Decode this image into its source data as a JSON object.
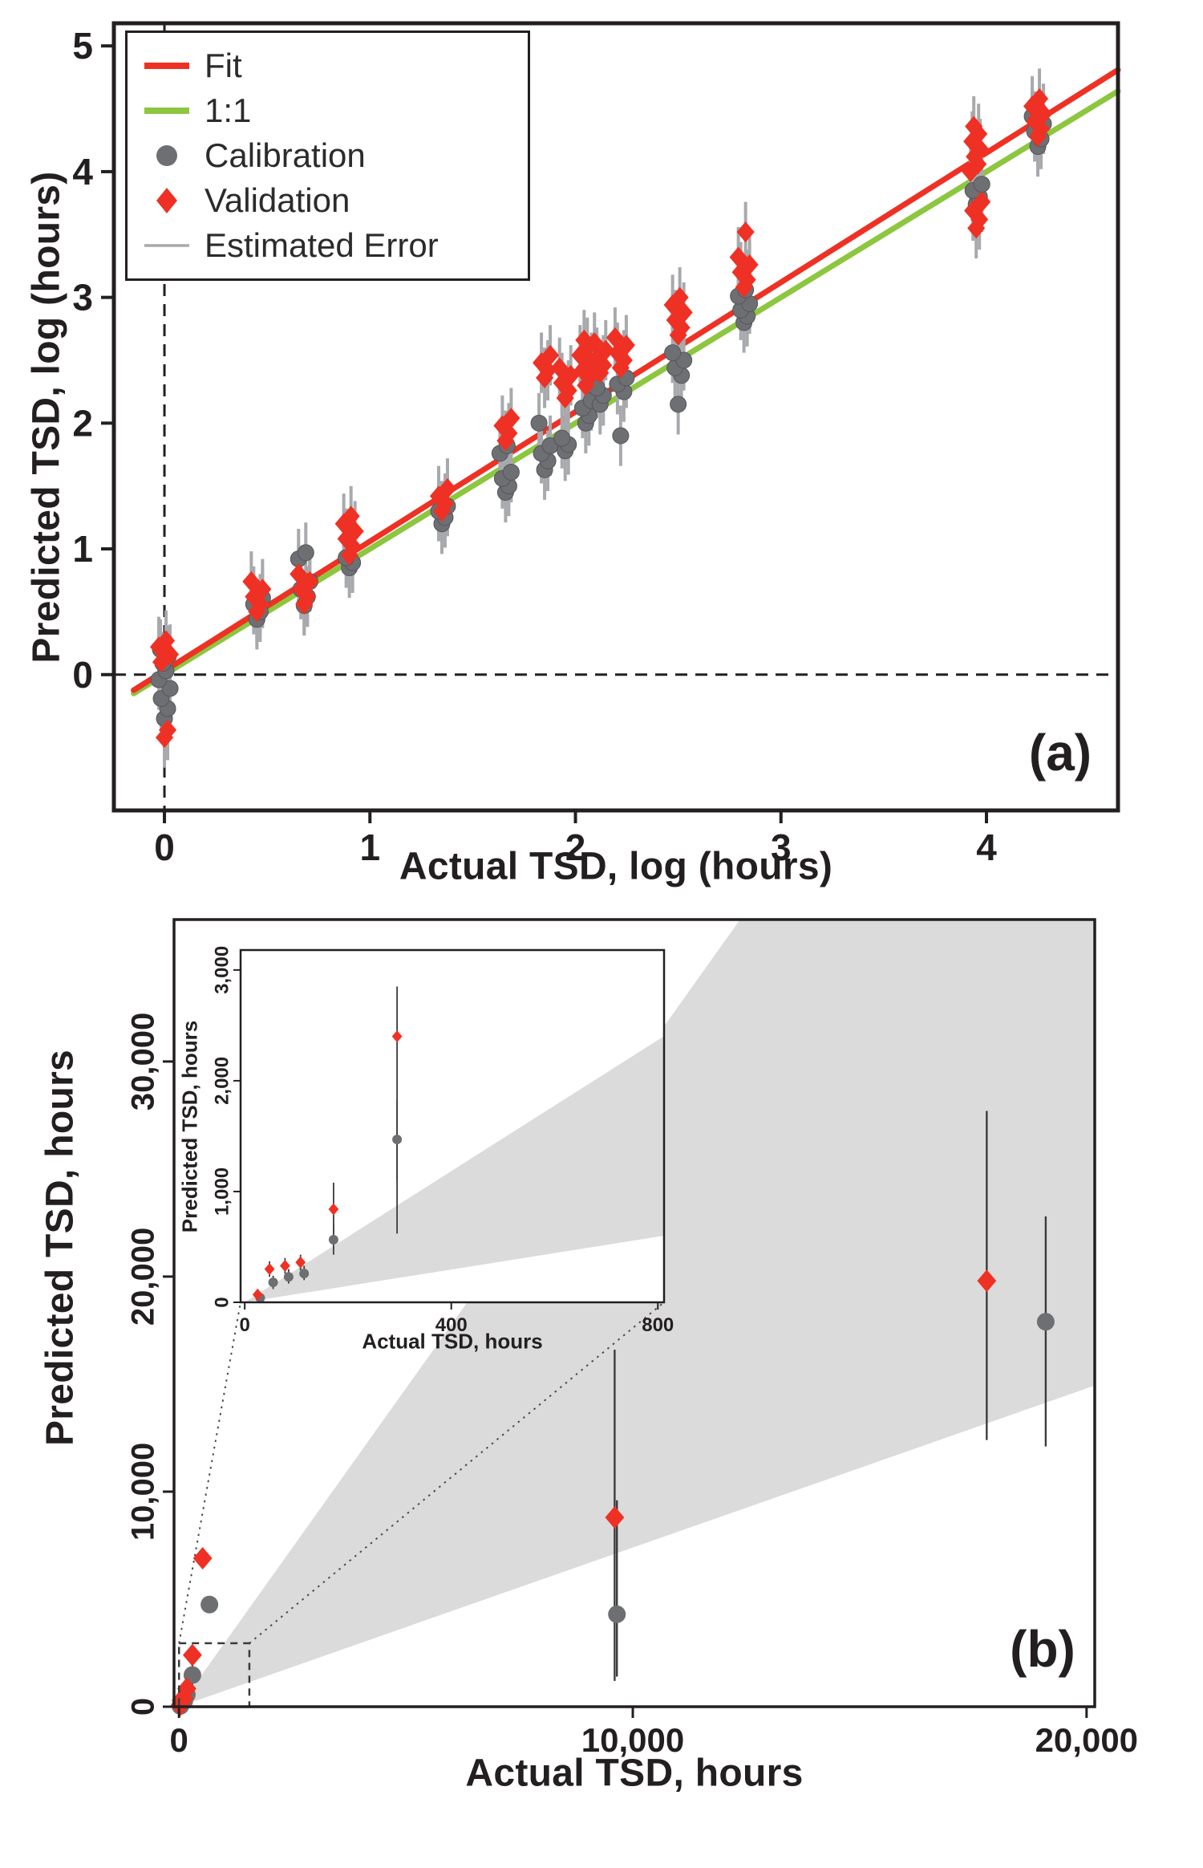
{
  "figure": {
    "description": "Two-panel scatter figure comparing predicted vs actual TSD",
    "background": "#ffffff"
  },
  "chart_data": [
    {
      "id": "panel-a",
      "type": "scatter",
      "tag": "(a)",
      "xlabel": "Actual TSD, log (hours)",
      "ylabel": "Predicted TSD, log (hours)",
      "xlim": [
        -0.246,
        4.64
      ],
      "ylim": [
        -1.08,
        5.18
      ],
      "grid": false,
      "xticks": [
        {
          "v": 0,
          "label": "0"
        },
        {
          "v": 1,
          "label": "1"
        },
        {
          "v": 2,
          "label": "2"
        },
        {
          "v": 3,
          "label": "3"
        },
        {
          "v": 4,
          "label": "4"
        }
      ],
      "yticks": [
        {
          "v": 0,
          "label": "0"
        },
        {
          "v": 1,
          "label": "1"
        },
        {
          "v": 2,
          "label": "2"
        },
        {
          "v": 3,
          "label": "3"
        },
        {
          "v": 4,
          "label": "4"
        },
        {
          "v": 5,
          "label": "5"
        }
      ],
      "colors": {
        "fit": "#ee3124",
        "one_to_one": "#8dc63f",
        "calibration": "#6e6f72",
        "validation": "#ee3124",
        "error_bar": "#a7a9ac",
        "reference": "#231f20"
      },
      "legend": [
        {
          "label": "Fit",
          "type": "line",
          "color": "#ee3124"
        },
        {
          "label": "1:1",
          "type": "line",
          "color": "#8dc63f"
        },
        {
          "label": "Calibration",
          "type": "circle",
          "color": "#6e6f72"
        },
        {
          "label": "Validation",
          "type": "diamond",
          "color": "#ee3124"
        },
        {
          "label": "Estimated Error",
          "type": "error-line",
          "color": "#a7a9ac"
        }
      ],
      "fit_line": {
        "slope": 1.03,
        "intercept": 0.03
      },
      "one_to_one_line": {
        "slope": 1.0,
        "intercept": 0.0
      },
      "reference_lines": {
        "vertical_x": 0,
        "horizontal_y": 0
      },
      "error_halfwidth": 0.24,
      "calibration_clusters": [
        {
          "x": 0.0,
          "ys": [
            -0.35,
            -0.27,
            -0.19,
            -0.11,
            -0.04,
            0.03,
            0.09,
            0.15,
            0.2
          ]
        },
        {
          "x": 0.45,
          "ys": [
            0.44,
            0.5,
            0.56,
            0.61
          ]
        },
        {
          "x": 0.68,
          "ys": [
            0.55,
            0.62,
            0.68,
            0.74,
            0.92,
            0.97
          ]
        },
        {
          "x": 0.9,
          "ys": [
            0.85,
            0.89,
            0.93
          ]
        },
        {
          "x": 1.35,
          "ys": [
            1.2,
            1.25,
            1.3,
            1.34
          ]
        },
        {
          "x": 1.66,
          "ys": [
            1.45,
            1.5,
            1.56,
            1.61,
            1.76,
            1.82
          ]
        },
        {
          "x": 1.85,
          "ys": [
            1.63,
            1.7,
            1.76,
            1.82,
            2.0
          ]
        },
        {
          "x": 1.95,
          "ys": [
            1.78,
            1.83,
            1.88
          ]
        },
        {
          "x": 2.05,
          "ys": [
            2.0,
            2.06,
            2.12,
            2.18
          ]
        },
        {
          "x": 2.12,
          "ys": [
            2.15,
            2.22,
            2.28
          ]
        },
        {
          "x": 2.22,
          "ys": [
            1.9,
            2.25,
            2.31,
            2.36
          ]
        },
        {
          "x": 2.5,
          "ys": [
            2.15,
            2.38,
            2.44,
            2.5,
            2.56
          ]
        },
        {
          "x": 2.82,
          "ys": [
            2.8,
            2.85,
            2.9,
            2.95,
            3.01,
            3.06
          ]
        },
        {
          "x": 3.95,
          "ys": [
            3.74,
            3.8,
            3.85,
            3.9
          ]
        },
        {
          "x": 4.25,
          "ys": [
            4.2,
            4.26,
            4.32,
            4.38,
            4.44
          ]
        }
      ],
      "validation_clusters": [
        {
          "x": 0.0,
          "ys": [
            -0.5,
            -0.44,
            0.1,
            0.16,
            0.22,
            0.27
          ]
        },
        {
          "x": 0.45,
          "ys": [
            0.5,
            0.56,
            0.62,
            0.68,
            0.74
          ]
        },
        {
          "x": 0.68,
          "ys": [
            0.56,
            0.62,
            0.68,
            0.74,
            0.8
          ]
        },
        {
          "x": 0.9,
          "ys": [
            0.95,
            1.02,
            1.08,
            1.14,
            1.2,
            1.26
          ]
        },
        {
          "x": 1.35,
          "ys": [
            1.3,
            1.36,
            1.42,
            1.48
          ]
        },
        {
          "x": 1.66,
          "ys": [
            1.86,
            1.92,
            1.98,
            2.04
          ]
        },
        {
          "x": 1.85,
          "ys": [
            2.36,
            2.42,
            2.48,
            2.54
          ]
        },
        {
          "x": 1.95,
          "ys": [
            2.2,
            2.26,
            2.32,
            2.38,
            2.44
          ]
        },
        {
          "x": 2.05,
          "ys": [
            2.3,
            2.36,
            2.42,
            2.48,
            2.54,
            2.6,
            2.66
          ]
        },
        {
          "x": 2.12,
          "ys": [
            2.4,
            2.46,
            2.52,
            2.58,
            2.64
          ]
        },
        {
          "x": 2.22,
          "ys": [
            2.44,
            2.5,
            2.56,
            2.62,
            2.68
          ]
        },
        {
          "x": 2.5,
          "ys": [
            2.7,
            2.76,
            2.82,
            2.88,
            2.94,
            3.0
          ]
        },
        {
          "x": 2.82,
          "ys": [
            3.08,
            3.14,
            3.2,
            3.26,
            3.32,
            3.52
          ]
        },
        {
          "x": 3.95,
          "ys": [
            3.55,
            3.62,
            3.69,
            3.76,
            4.0,
            4.06,
            4.12,
            4.18,
            4.24,
            4.3,
            4.36
          ]
        },
        {
          "x": 4.25,
          "ys": [
            4.28,
            4.34,
            4.4,
            4.46,
            4.52,
            4.58
          ]
        }
      ]
    },
    {
      "id": "panel-b",
      "type": "scatter",
      "tag": "(b)",
      "xlabel": "Actual TSD, hours",
      "ylabel": "Predicted TSD, hours",
      "xlim": [
        -110,
        20180
      ],
      "ylim": [
        0,
        36600
      ],
      "grid": false,
      "xticks": [
        {
          "v": 0,
          "label": "0"
        },
        {
          "v": 10000,
          "label": "10,000"
        },
        {
          "v": 20000,
          "label": "20,000"
        }
      ],
      "yticks": [
        {
          "v": 0,
          "label": "0"
        },
        {
          "v": 10000,
          "label": "10,000"
        },
        {
          "v": 20000,
          "label": "20,000"
        },
        {
          "v": 30000,
          "label": "30,000"
        }
      ],
      "colors": {
        "calibration": "#6e6f72",
        "validation": "#ee3124",
        "error_bar": "#3c3c3c",
        "cone": "#dbdbdb",
        "frame": "#231f20"
      },
      "error_cone": {
        "upper_slope": 2.96,
        "lower_slope": 0.74
      },
      "zoom_box": {
        "x0": 0,
        "y0": 0,
        "x1": 1550,
        "y1": 2950
      },
      "calibration": [
        {
          "x": 30,
          "y": 40
        },
        {
          "x": 55,
          "y": 180,
          "err": [
            120,
            240
          ]
        },
        {
          "x": 85,
          "y": 230,
          "err": [
            170,
            300
          ]
        },
        {
          "x": 115,
          "y": 260,
          "err": [
            200,
            330
          ]
        },
        {
          "x": 172,
          "y": 565,
          "err": [
            430,
            700
          ]
        },
        {
          "x": 295,
          "y": 1470,
          "err": [
            1100,
            1830
          ]
        },
        {
          "x": 670,
          "y": 4750
        },
        {
          "x": 9650,
          "y": 4300,
          "err": [
            1400,
            9600
          ]
        },
        {
          "x": 19100,
          "y": 17900,
          "err": [
            12100,
            22800
          ]
        }
      ],
      "validation": [
        {
          "x": 25,
          "y": 70
        },
        {
          "x": 48,
          "y": 300,
          "err": [
            230,
            370
          ]
        },
        {
          "x": 78,
          "y": 330,
          "err": [
            260,
            400
          ]
        },
        {
          "x": 108,
          "y": 360,
          "err": [
            290,
            430
          ]
        },
        {
          "x": 172,
          "y": 840,
          "err": [
            620,
            1080
          ]
        },
        {
          "x": 295,
          "y": 2400,
          "err": [
            620,
            2850
          ]
        },
        {
          "x": 520,
          "y": 6900
        },
        {
          "x": 9600,
          "y": 8800,
          "err": [
            1200,
            16600
          ]
        },
        {
          "x": 17800,
          "y": 19800,
          "err": [
            12400,
            27700
          ]
        }
      ],
      "inset": {
        "xlabel": "Actual TSD, hours",
        "ylabel": "Predicted TSD, hours",
        "xlim": [
          -8,
          812
        ],
        "ylim": [
          0,
          3180
        ],
        "xticks": [
          {
            "v": 0,
            "label": "0"
          },
          {
            "v": 400,
            "label": "400"
          },
          {
            "v": 800,
            "label": "800"
          }
        ],
        "yticks": [
          {
            "v": 0,
            "label": "0"
          },
          {
            "v": 1000,
            "label": "1,000"
          },
          {
            "v": 2000,
            "label": "2,000"
          },
          {
            "v": 3000,
            "label": "3,000"
          }
        ]
      }
    }
  ]
}
